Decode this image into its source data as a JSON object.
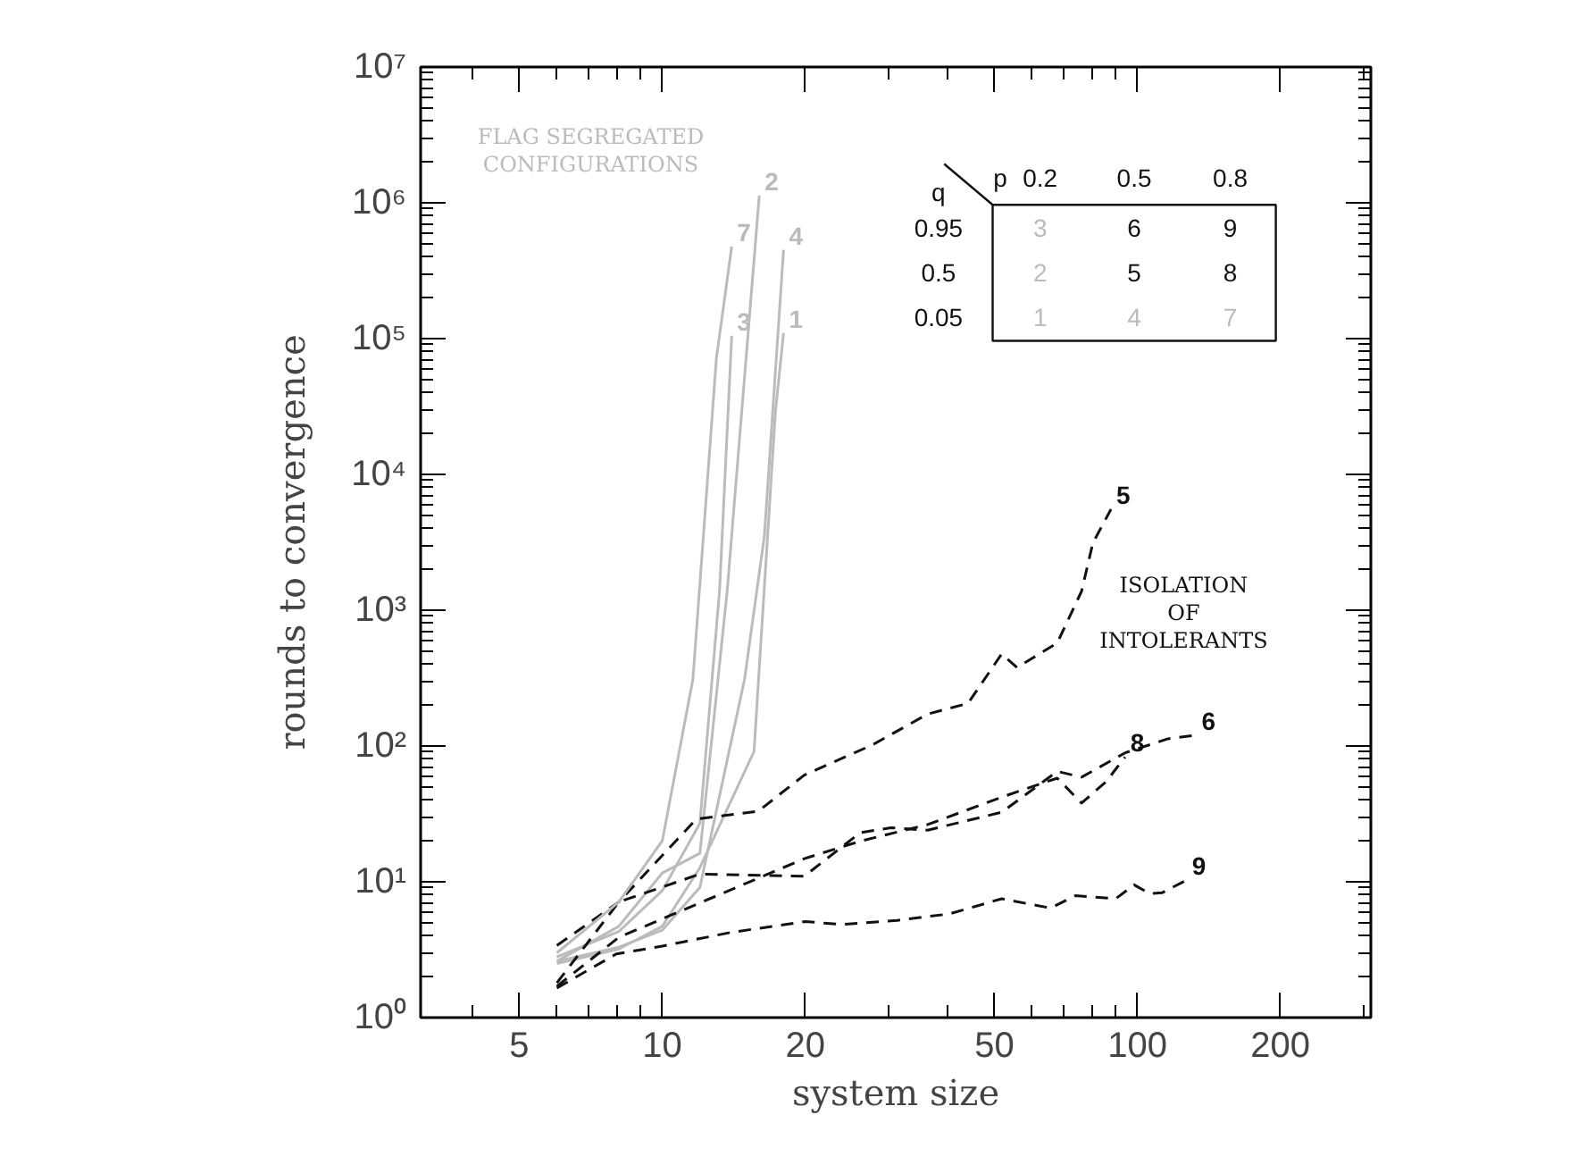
{
  "chart_data": {
    "type": "line",
    "xlabel": "system size",
    "ylabel": "rounds to convergence",
    "log": "xy",
    "xlim": [
      3.1,
      310
    ],
    "ylim": [
      1,
      10000000
    ],
    "xticks": [
      5,
      10,
      20,
      50,
      100,
      200
    ],
    "yticks": [
      {
        "value": 1,
        "label": "10⁰"
      },
      {
        "value": 10,
        "label": "10¹"
      },
      {
        "value": 100,
        "label": "10²"
      },
      {
        "value": 1000,
        "label": "10³"
      },
      {
        "value": 10000,
        "label": "10⁴"
      },
      {
        "value": 100000,
        "label": "10⁵"
      },
      {
        "value": 1000000,
        "label": "10⁶"
      },
      {
        "value": 10000000,
        "label": "10⁷"
      }
    ],
    "series": [
      {
        "name": "1",
        "color": "#bbbbbb",
        "line_style": "solid",
        "x": [
          6,
          8.1,
          10,
          12,
          15.6,
          17.3,
          18
        ],
        "values": [
          2.5,
          3.2,
          4.7,
          12.7,
          91,
          28800,
          110000
        ]
      },
      {
        "name": "2",
        "color": "#bbbbbb",
        "line_style": "solid",
        "x": [
          6,
          8.1,
          10,
          12,
          13.7,
          16
        ],
        "values": [
          2.6,
          4.7,
          11.6,
          16.2,
          1400,
          1130000
        ]
      },
      {
        "name": "3",
        "color": "#bbbbbb",
        "line_style": "solid",
        "x": [
          6,
          8.1,
          10,
          12,
          13.2,
          14
        ],
        "values": [
          2.8,
          4.3,
          8.6,
          27,
          1400,
          105000
        ]
      },
      {
        "name": "4",
        "color": "#bbbbbb",
        "line_style": "solid",
        "x": [
          6,
          8.1,
          10,
          12,
          14.9,
          16.4,
          18
        ],
        "values": [
          2.6,
          3.3,
          4.4,
          9.1,
          310,
          3500,
          450000
        ]
      },
      {
        "name": "5",
        "color": "#111111",
        "line_style": "dashed",
        "x": [
          6,
          8.1,
          11.8,
          15.9,
          19.9,
          27.7,
          36.2,
          44,
          51.8,
          55.8,
          67.8,
          76.3,
          80.6,
          88
        ],
        "values": [
          3.4,
          7.1,
          29,
          33,
          61,
          102,
          172,
          206,
          476,
          378,
          574,
          1380,
          3130,
          5540
        ]
      },
      {
        "name": "6",
        "color": "#111111",
        "line_style": "dashed",
        "x": [
          6,
          8.1,
          12,
          19.9,
          26.1,
          30.3,
          36.2,
          51.8,
          67.8,
          76.3,
          94.2,
          116,
          133
        ],
        "values": [
          1.8,
          7.1,
          11.4,
          11,
          23,
          25,
          24,
          32.5,
          65,
          59,
          89,
          113,
          120
        ]
      },
      {
        "name": "7",
        "color": "#bbbbbb",
        "line_style": "solid",
        "x": [
          6,
          8.1,
          10,
          11.6,
          13,
          14
        ],
        "values": [
          3,
          7.1,
          20,
          310,
          72000,
          476000
        ]
      },
      {
        "name": "8",
        "color": "#111111",
        "line_style": "dashed",
        "x": [
          6,
          8.1,
          19.9,
          26.1,
          36.2,
          51.8,
          67.8,
          76.3,
          86.1,
          94.2
        ],
        "values": [
          1.7,
          3.9,
          14.8,
          19.9,
          26.4,
          42,
          58,
          38,
          55,
          83
        ]
      },
      {
        "name": "9",
        "color": "#111111",
        "line_style": "dashed",
        "x": [
          6,
          8,
          10,
          13.9,
          20,
          23.8,
          31.2,
          40.2,
          51.8,
          65.7,
          74,
          90,
          98.4,
          106,
          112.6,
          127
        ],
        "values": [
          1.65,
          2.94,
          3.36,
          4.23,
          5.1,
          4.85,
          5.2,
          5.8,
          7.5,
          6.4,
          7.9,
          7.5,
          9.5,
          8.2,
          8.3,
          10.3
        ]
      }
    ],
    "annotations": [
      "FLAG SEGREGATED\nCONFIGURATIONS",
      "ISOLATION\nOF\nINTOLERANTS",
      "q",
      "p",
      "0.2",
      "0.5",
      "0.8",
      "0.95",
      "0.5",
      "0.05"
    ]
  }
}
